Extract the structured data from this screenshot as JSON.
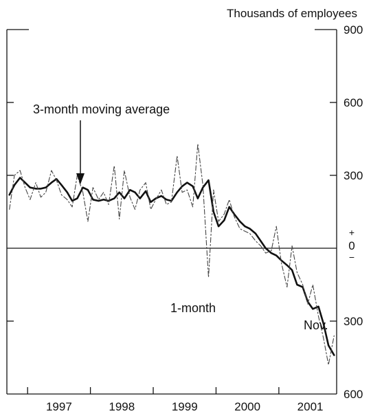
{
  "chart_data": {
    "type": "line",
    "title": "",
    "unit_label": "Thousands of employees",
    "x_tick_labels": [
      "1997",
      "1998",
      "1999",
      "2000",
      "2001"
    ],
    "xlim": [
      1996.67,
      2001.92
    ],
    "ylim": [
      -600,
      900
    ],
    "y_ticks": [
      {
        "value": 900,
        "label": "900"
      },
      {
        "value": 600,
        "label": "600"
      },
      {
        "value": 300,
        "label": "300"
      },
      {
        "value": -300,
        "label": "300"
      },
      {
        "value": -600,
        "label": "600"
      }
    ],
    "zero_marker": {
      "plus": "+",
      "zero": "0",
      "minus": "−"
    },
    "annotations": {
      "ma_label": "3-month moving average",
      "one_month_label": "1-month",
      "end_label": "Nov."
    },
    "series": [
      {
        "name": "3-month moving average",
        "style": "solid-thick",
        "x": [
          1996.71,
          1996.79,
          1996.88,
          1996.96,
          1997.04,
          1997.13,
          1997.21,
          1997.29,
          1997.38,
          1997.46,
          1997.54,
          1997.63,
          1997.71,
          1997.79,
          1997.88,
          1997.96,
          1998.04,
          1998.13,
          1998.21,
          1998.29,
          1998.38,
          1998.46,
          1998.54,
          1998.63,
          1998.71,
          1998.79,
          1998.88,
          1998.96,
          1999.04,
          1999.13,
          1999.21,
          1999.29,
          1999.38,
          1999.46,
          1999.54,
          1999.63,
          1999.71,
          1999.79,
          1999.88,
          1999.96,
          2000.04,
          2000.13,
          2000.21,
          2000.29,
          2000.38,
          2000.46,
          2000.54,
          2000.63,
          2000.71,
          2000.79,
          2000.88,
          2000.96,
          2001.04,
          2001.13,
          2001.21,
          2001.29,
          2001.38,
          2001.46,
          2001.54,
          2001.63,
          2001.71,
          2001.79,
          2001.88
        ],
        "values": [
          220,
          260,
          290,
          270,
          250,
          245,
          245,
          250,
          270,
          285,
          260,
          230,
          195,
          205,
          250,
          240,
          200,
          195,
          200,
          195,
          205,
          230,
          205,
          240,
          230,
          205,
          235,
          190,
          205,
          215,
          200,
          195,
          230,
          255,
          270,
          255,
          205,
          250,
          280,
          150,
          90,
          115,
          170,
          140,
          110,
          90,
          80,
          60,
          30,
          0,
          -20,
          -30,
          -50,
          -70,
          -90,
          -150,
          -160,
          -220,
          -250,
          -240,
          -310,
          -400,
          -440
        ]
      },
      {
        "name": "1-month",
        "style": "dashed-thin",
        "x": [
          1996.71,
          1996.79,
          1996.88,
          1996.96,
          1997.04,
          1997.13,
          1997.21,
          1997.29,
          1997.38,
          1997.46,
          1997.54,
          1997.63,
          1997.71,
          1997.79,
          1997.88,
          1997.96,
          1998.04,
          1998.13,
          1998.21,
          1998.29,
          1998.38,
          1998.46,
          1998.54,
          1998.63,
          1998.71,
          1998.79,
          1998.88,
          1998.96,
          1999.04,
          1999.13,
          1999.21,
          1999.29,
          1999.38,
          1999.46,
          1999.54,
          1999.63,
          1999.71,
          1999.79,
          1999.88,
          1999.96,
          2000.04,
          2000.13,
          2000.21,
          2000.29,
          2000.38,
          2000.46,
          2000.54,
          2000.63,
          2000.71,
          2000.79,
          2000.88,
          2000.96,
          2001.04,
          2001.13,
          2001.21,
          2001.29,
          2001.38,
          2001.46,
          2001.54,
          2001.63,
          2001.71,
          2001.79,
          2001.88
        ],
        "values": [
          160,
          300,
          320,
          250,
          200,
          270,
          210,
          230,
          320,
          280,
          220,
          200,
          170,
          300,
          230,
          110,
          250,
          200,
          230,
          180,
          340,
          120,
          320,
          210,
          160,
          240,
          270,
          160,
          200,
          240,
          180,
          190,
          380,
          230,
          240,
          170,
          430,
          260,
          -120,
          240,
          110,
          140,
          200,
          130,
          80,
          70,
          60,
          30,
          10,
          -20,
          -10,
          90,
          -60,
          -160,
          10,
          -100,
          -150,
          -230,
          -150,
          -280,
          -370,
          -480,
          -360
        ]
      }
    ]
  }
}
